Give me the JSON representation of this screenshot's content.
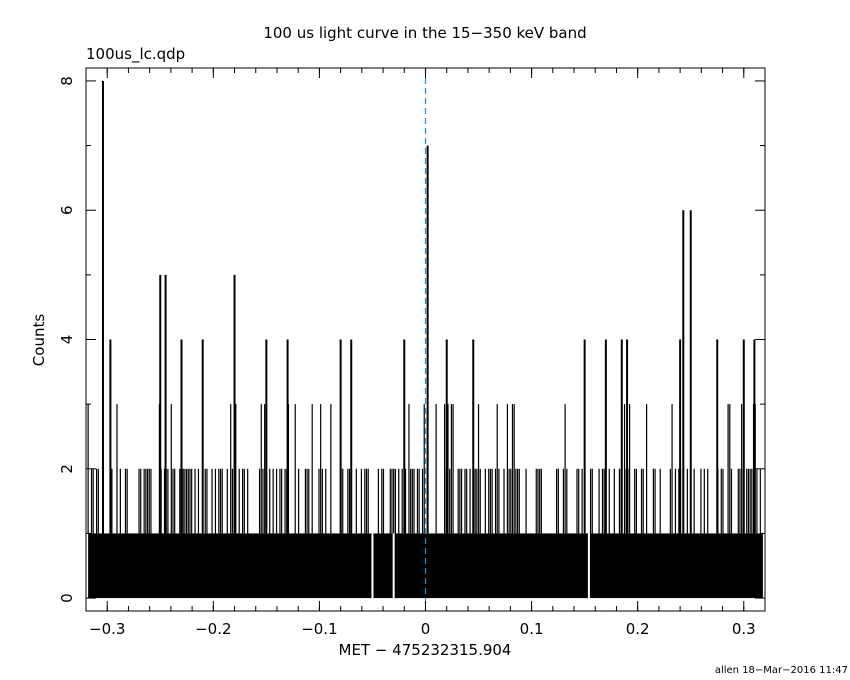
{
  "chart_data": {
    "type": "bar",
    "title": "100 us light curve in the 15−350 keV band",
    "file_label": "100us_lc.qdp",
    "xlabel": "MET − 475232315.904",
    "ylabel": "Counts",
    "footer": "allen 18−Mar−2016 11:47",
    "xlim": [
      -0.32,
      0.32
    ],
    "ylim": [
      -0.2,
      8.2
    ],
    "xticks": [
      -0.3,
      -0.2,
      -0.1,
      0,
      0.1,
      0.2,
      0.3
    ],
    "xtick_labels": [
      "−0.3",
      "−0.2",
      "−0.1",
      "0",
      "0.1",
      "0.2",
      "0.3"
    ],
    "yticks": [
      0,
      2,
      4,
      6,
      8
    ],
    "ytick_labels": [
      "0",
      "2",
      "4",
      "6",
      "8"
    ],
    "baseline_count": 1,
    "gaps_at_x": [
      -0.05,
      -0.03,
      0.154
    ],
    "reference_line": {
      "x": 0,
      "style": "dashed",
      "color": "#1e90d0"
    },
    "peaks": [
      {
        "x": -0.304,
        "y": 8
      },
      {
        "x": -0.297,
        "y": 4
      },
      {
        "x": -0.25,
        "y": 5
      },
      {
        "x": -0.245,
        "y": 5
      },
      {
        "x": -0.18,
        "y": 5
      },
      {
        "x": 0.002,
        "y": 7
      },
      {
        "x": 0.243,
        "y": 6
      },
      {
        "x": 0.25,
        "y": 6
      },
      {
        "x": -0.23,
        "y": 4
      },
      {
        "x": -0.21,
        "y": 4
      },
      {
        "x": -0.15,
        "y": 4
      },
      {
        "x": -0.13,
        "y": 4
      },
      {
        "x": -0.08,
        "y": 4
      },
      {
        "x": -0.07,
        "y": 4
      },
      {
        "x": -0.02,
        "y": 4
      },
      {
        "x": 0.02,
        "y": 4
      },
      {
        "x": 0.045,
        "y": 4
      },
      {
        "x": 0.15,
        "y": 4
      },
      {
        "x": 0.17,
        "y": 4
      },
      {
        "x": 0.185,
        "y": 4
      },
      {
        "x": 0.19,
        "y": 4
      },
      {
        "x": 0.24,
        "y": 4
      },
      {
        "x": 0.275,
        "y": 4
      },
      {
        "x": 0.3,
        "y": 4
      },
      {
        "x": 0.31,
        "y": 4
      }
    ],
    "background_level_3_fraction": 0.09,
    "background_level_2_fraction": 0.55
  },
  "colors": {
    "axis": "#000000",
    "bars": "#000000",
    "refline": "#1e90d0"
  }
}
